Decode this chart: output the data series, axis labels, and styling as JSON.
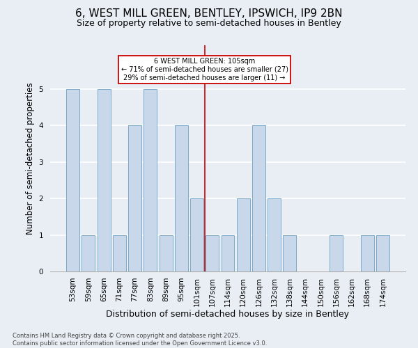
{
  "title1": "6, WEST MILL GREEN, BENTLEY, IPSWICH, IP9 2BN",
  "title2": "Size of property relative to semi-detached houses in Bentley",
  "xlabel": "Distribution of semi-detached houses by size in Bentley",
  "ylabel": "Number of semi-detached properties",
  "categories": [
    "53sqm",
    "59sqm",
    "65sqm",
    "71sqm",
    "77sqm",
    "83sqm",
    "89sqm",
    "95sqm",
    "101sqm",
    "107sqm",
    "114sqm",
    "120sqm",
    "126sqm",
    "132sqm",
    "138sqm",
    "144sqm",
    "150sqm",
    "156sqm",
    "162sqm",
    "168sqm",
    "174sqm"
  ],
  "values": [
    5,
    1,
    5,
    1,
    4,
    5,
    1,
    4,
    2,
    1,
    1,
    2,
    4,
    2,
    1,
    0,
    0,
    1,
    0,
    1,
    1
  ],
  "bar_color": "#c8d8ea",
  "bar_edge_color": "#7aaac8",
  "reference_line_x": 8.5,
  "reference_label": "6 WEST MILL GREEN: 105sqm",
  "pct_smaller": "71% of semi-detached houses are smaller (27)",
  "pct_larger": "29% of semi-detached houses are larger (11)",
  "annotation_box_color": "#ffffff",
  "annotation_box_edge": "#cc0000",
  "ref_line_color": "#cc0000",
  "ylim": [
    0,
    6.2
  ],
  "yticks": [
    0,
    1,
    2,
    3,
    4,
    5
  ],
  "background_color": "#e8eef4",
  "grid_color": "#ffffff",
  "footer": "Contains HM Land Registry data © Crown copyright and database right 2025.\nContains public sector information licensed under the Open Government Licence v3.0.",
  "title1_fontsize": 11,
  "title2_fontsize": 9,
  "xlabel_fontsize": 9,
  "ylabel_fontsize": 8.5,
  "tick_fontsize": 7.5,
  "footer_fontsize": 6
}
